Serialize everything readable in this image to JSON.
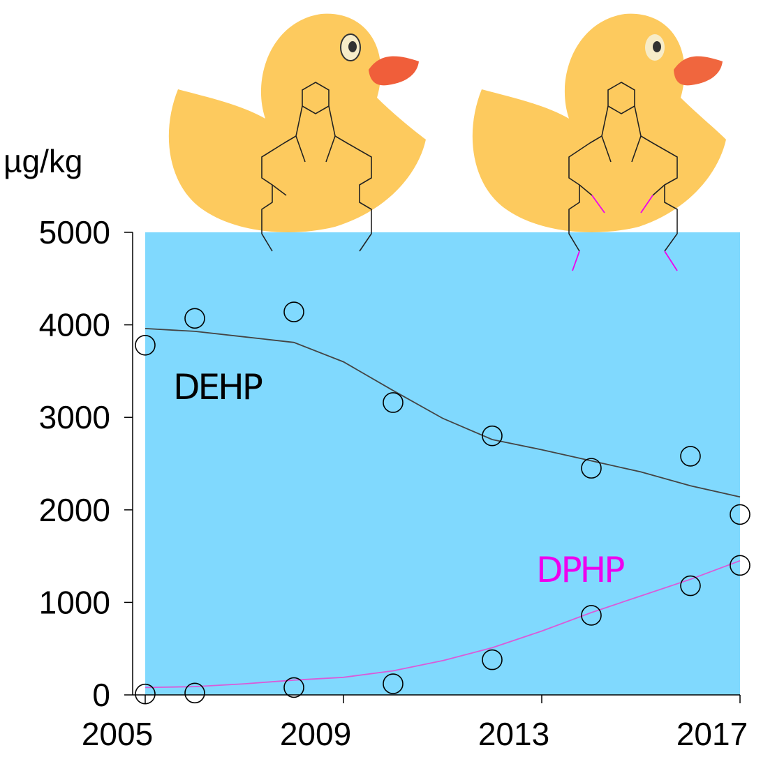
{
  "chart_data": {
    "type": "scatter",
    "title": "",
    "xlabel": "",
    "ylabel": "µg/kg",
    "xlim": [
      2005,
      2017
    ],
    "ylim": [
      0,
      5000
    ],
    "x_ticks": [
      "2005",
      "2009",
      "2013",
      "2017"
    ],
    "y_ticks": [
      "0",
      "1000",
      "2000",
      "3000",
      "4000",
      "5000"
    ],
    "plot_background": "#80d9fe",
    "grid": false,
    "legend": "none",
    "series": [
      {
        "name": "DEHP",
        "color": "#000000",
        "trend_color": "#444444",
        "points": [
          [
            2005,
            3780
          ],
          [
            2006,
            4070
          ],
          [
            2008,
            4140
          ],
          [
            2010,
            3160
          ],
          [
            2012,
            2800
          ],
          [
            2014,
            2450
          ],
          [
            2016,
            2580
          ],
          [
            2017,
            1950
          ]
        ],
        "trend": [
          [
            2005,
            3960
          ],
          [
            2006,
            3930
          ],
          [
            2007,
            3870
          ],
          [
            2008,
            3810
          ],
          [
            2009,
            3600
          ],
          [
            2010,
            3290
          ],
          [
            2011,
            2990
          ],
          [
            2012,
            2760
          ],
          [
            2013,
            2650
          ],
          [
            2014,
            2530
          ],
          [
            2015,
            2410
          ],
          [
            2016,
            2260
          ],
          [
            2017,
            2140
          ]
        ]
      },
      {
        "name": "DPHP",
        "color": "#ee00ee",
        "trend_color": "#d95bd9",
        "points": [
          [
            2005,
            10
          ],
          [
            2006,
            20
          ],
          [
            2008,
            80
          ],
          [
            2010,
            120
          ],
          [
            2012,
            380
          ],
          [
            2014,
            860
          ],
          [
            2016,
            1180
          ],
          [
            2017,
            1400
          ]
        ],
        "trend": [
          [
            2005,
            80
          ],
          [
            2006,
            90
          ],
          [
            2007,
            120
          ],
          [
            2008,
            160
          ],
          [
            2009,
            190
          ],
          [
            2010,
            260
          ],
          [
            2011,
            370
          ],
          [
            2012,
            510
          ],
          [
            2013,
            690
          ],
          [
            2014,
            890
          ],
          [
            2015,
            1070
          ],
          [
            2016,
            1250
          ],
          [
            2017,
            1450
          ]
        ]
      }
    ]
  }
}
